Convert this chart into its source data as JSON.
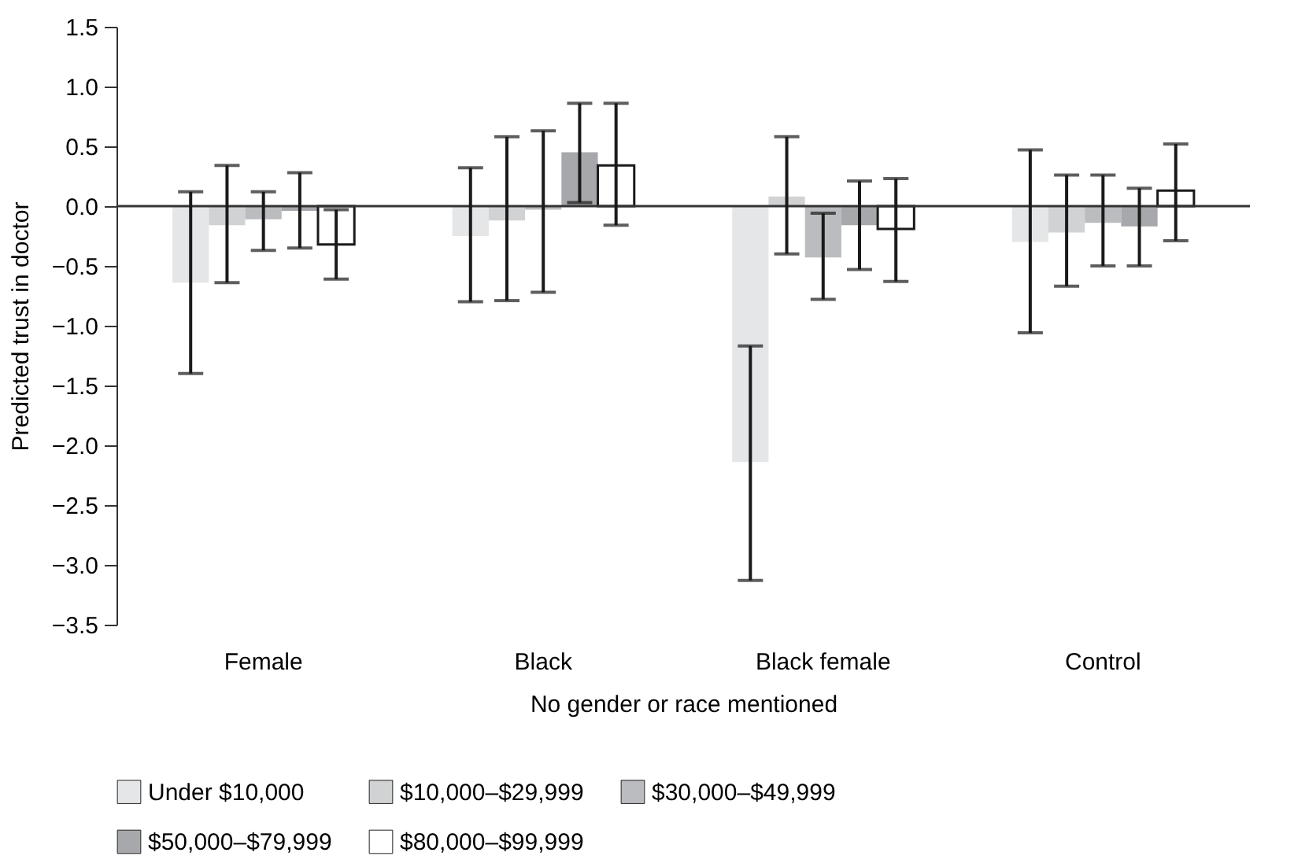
{
  "chart_data": {
    "type": "bar",
    "xlabel": "No gender or race mentioned",
    "ylabel": "Predicted trust in doctor",
    "categories": [
      "Female",
      "Black",
      "Black female",
      "Control"
    ],
    "series": [
      {
        "name": "Under $10,000",
        "color": "#e5e6e8",
        "values": [
          -0.64,
          -0.25,
          -2.14,
          -0.3
        ],
        "errors": [
          [
            -1.4,
            0.12
          ],
          [
            -0.8,
            0.32
          ],
          [
            -3.13,
            -1.17
          ],
          [
            -1.06,
            0.47
          ]
        ]
      },
      {
        "name": "$10,000–$29,999",
        "color": "#d1d2d4",
        "values": [
          -0.16,
          -0.12,
          0.08,
          -0.22
        ],
        "errors": [
          [
            -0.64,
            0.34
          ],
          [
            -0.79,
            0.58
          ],
          [
            -0.4,
            0.58
          ],
          [
            -0.67,
            0.26
          ]
        ]
      },
      {
        "name": "$30,000–$49,999",
        "color": "#bbbcc0",
        "values": [
          -0.11,
          -0.03,
          -0.43,
          -0.14
        ],
        "errors": [
          [
            -0.37,
            0.12
          ],
          [
            -0.72,
            0.63
          ],
          [
            -0.78,
            -0.06
          ],
          [
            -0.5,
            0.26
          ]
        ]
      },
      {
        "name": "$50,000–$79,999",
        "color": "#a7a8ab",
        "values": [
          -0.04,
          0.45,
          -0.16,
          -0.17
        ],
        "errors": [
          [
            -0.35,
            0.28
          ],
          [
            0.03,
            0.86
          ],
          [
            -0.53,
            0.21
          ],
          [
            -0.5,
            0.15
          ]
        ]
      },
      {
        "name": "$80,000–$99,999",
        "color": "#ffffff",
        "values": [
          -0.32,
          0.34,
          -0.19,
          0.13
        ],
        "errors": [
          [
            -0.61,
            -0.03
          ],
          [
            -0.16,
            0.86
          ],
          [
            -0.63,
            0.23
          ],
          [
            -0.29,
            0.52
          ]
        ]
      }
    ],
    "ylim": [
      -3.5,
      1.5
    ],
    "yticks": [
      {
        "value": -3.5,
        "label": "−3.5"
      },
      {
        "value": -3,
        "label": "−3.0"
      },
      {
        "value": -2.5,
        "label": "−2.5"
      },
      {
        "value": -2,
        "label": "−2.0"
      },
      {
        "value": -1.5,
        "label": "−1.5"
      },
      {
        "value": -1,
        "label": "−1.0"
      },
      {
        "value": -0.5,
        "label": "−0.5"
      },
      {
        "value": 0,
        "label": "0.0"
      },
      {
        "value": 0.5,
        "label": "0.5"
      },
      {
        "value": 1,
        "label": "1.0"
      },
      {
        "value": 1.5,
        "label": "1.5"
      }
    ],
    "ref_lines": [
      {
        "axis": "y",
        "value": 0,
        "color": "#333333"
      }
    ],
    "legend": "bottom",
    "grid": false
  }
}
